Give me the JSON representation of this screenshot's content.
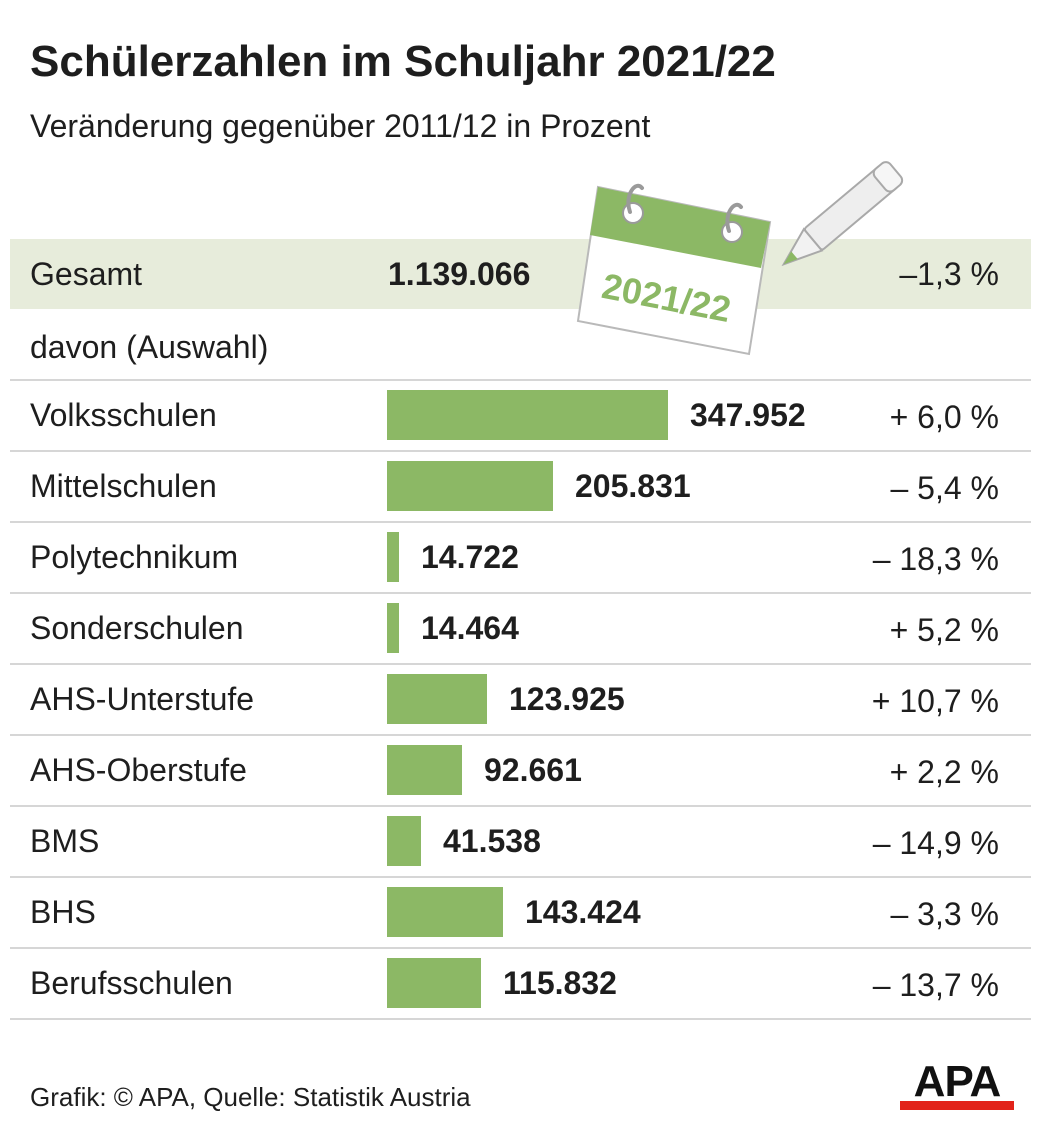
{
  "header": {
    "title": "Schülerzahlen im Schuljahr 2021/22",
    "subtitle": "Veränderung gegenüber 2011/12 in Prozent"
  },
  "total": {
    "label": "Gesamt",
    "value": "1.139.066",
    "change": "–1,3 %"
  },
  "subset_label": "davon (Auswahl)",
  "calendar_label": "2021/22",
  "colors": {
    "bar": "#8cb865",
    "total_row_bg": "#e7ecdb",
    "logo_red": "#e2231a",
    "calendar_green": "#8cb865"
  },
  "chart_data": {
    "type": "bar",
    "orientation": "horizontal",
    "title": "Schülerzahlen im Schuljahr 2021/22",
    "subtitle": "Veränderung gegenüber 2011/12 in Prozent",
    "categories": [
      "Volksschulen",
      "Mittelschulen",
      "Polytechnikum",
      "Sonderschulen",
      "AHS-Unterstufe",
      "AHS-Oberstufe",
      "BMS",
      "BHS",
      "Berufsschulen"
    ],
    "values": [
      347952,
      205831,
      14722,
      14464,
      123925,
      92661,
      41538,
      143424,
      115832
    ],
    "value_labels": [
      "347.952",
      "205.831",
      "14.722",
      "14.464",
      "123.925",
      "92.661",
      "41.538",
      "143.424",
      "115.832"
    ],
    "change_labels": [
      "+ 6,0 %",
      "– 5,4 %",
      "– 18,3 %",
      "+ 5,2 %",
      "+ 10,7 %",
      "+ 2,2 %",
      "– 14,9 %",
      "– 3,3 %",
      "– 13,7 %"
    ],
    "change_values": [
      6.0,
      -5.4,
      -18.3,
      5.2,
      10.7,
      2.2,
      -14.9,
      -3.3,
      -13.7
    ],
    "grid": false
  },
  "footer": {
    "source": "Grafik: © APA, Quelle: Statistik Austria",
    "logo_text": "APA"
  }
}
